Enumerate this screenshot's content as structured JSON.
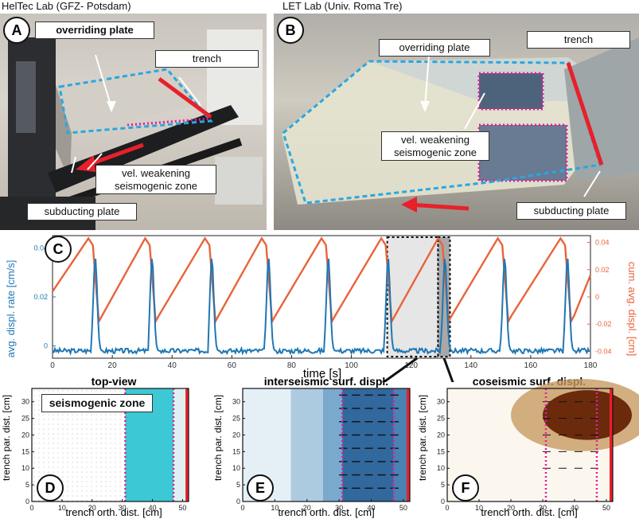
{
  "panelA": {
    "caption": "HelTec Lab (GFZ- Potsdam)",
    "letter": "A",
    "labels": {
      "overriding": "overriding plate",
      "trench": "trench",
      "vel_line1": "vel. weakening",
      "vel_line2": "seismogenic zone",
      "subducting": "subducting plate"
    }
  },
  "panelB": {
    "caption": "LET Lab (Univ. Roma Tre)",
    "letter": "B",
    "labels": {
      "overriding": "overriding plate",
      "trench": "trench",
      "vel_line1": "vel. weakening",
      "vel_line2": "seismogenic zone",
      "subducting": "subducting plate"
    }
  },
  "panelC": {
    "letter": "C",
    "xlabel": "time [s]",
    "ylabel_left": "avg. displ. rate [cm/s]",
    "ylabel_right": "cum. avg. displ. [cm]",
    "xticks": [
      "0",
      "20",
      "40",
      "60",
      "80",
      "100",
      "120",
      "140",
      "160",
      "180"
    ],
    "yticks_left": [
      "0",
      "0.02",
      "0.04"
    ],
    "yticks_right": [
      "0.04",
      "0.02",
      "0",
      "-0.02",
      "-0.04"
    ]
  },
  "panelD": {
    "letter": "D",
    "title": "top-view",
    "xlabel": "trench orth. dist. [cm]",
    "ylabel": "trench par. dist. [cm]",
    "zone_label": "seismogenic zone",
    "xticks": [
      "0",
      "10",
      "20",
      "30",
      "40",
      "50"
    ],
    "yticks": [
      "0",
      "5",
      "10",
      "15",
      "20",
      "25",
      "30"
    ]
  },
  "panelE": {
    "letter": "E",
    "title": "interseismic surf. displ.",
    "xlabel": "trench orth. dist. [cm]",
    "ylabel": "trench par. dist. [cm]",
    "xticks": [
      "0",
      "10",
      "20",
      "30",
      "40",
      "50"
    ],
    "yticks": [
      "0",
      "5",
      "10",
      "15",
      "20",
      "25",
      "30"
    ]
  },
  "panelF": {
    "letter": "F",
    "title": "coseismic surf. displ.",
    "xlabel": "trench orth. dist. [cm]",
    "ylabel": "trench par. dist. [cm]",
    "xticks": [
      "0",
      "10",
      "20",
      "30",
      "40",
      "50"
    ],
    "yticks": [
      "0",
      "5",
      "10",
      "15",
      "20",
      "25",
      "30"
    ]
  },
  "colors": {
    "rate": "#1f77b4",
    "cumulative": "#e8643a",
    "trench": "#e8202a",
    "zone_outline": "#e0209a",
    "plate_outline": "#2aa7e0",
    "cyan_zone": "#3cc8d4"
  },
  "chart_data": {
    "type": "line",
    "x_range": [
      0,
      180
    ],
    "ylim_left": [
      -0.005,
      0.045
    ],
    "ylim_right": [
      -0.045,
      0.045
    ],
    "series": [
      {
        "axis": "left",
        "event_times": [
          14,
          33,
          53,
          72,
          92,
          112,
          131,
          151,
          172
        ],
        "event_peak": 0.036,
        "baseline": -0.002
      },
      {
        "axis": "right",
        "event_times": [
          14,
          33,
          53,
          72,
          92,
          112,
          131,
          151,
          172
        ],
        "peak": 0.043,
        "trough": -0.018
      }
    ],
    "highlight_interseismic": [
      112,
      129
    ],
    "highlight_coseismic": [
      129,
      133
    ]
  }
}
